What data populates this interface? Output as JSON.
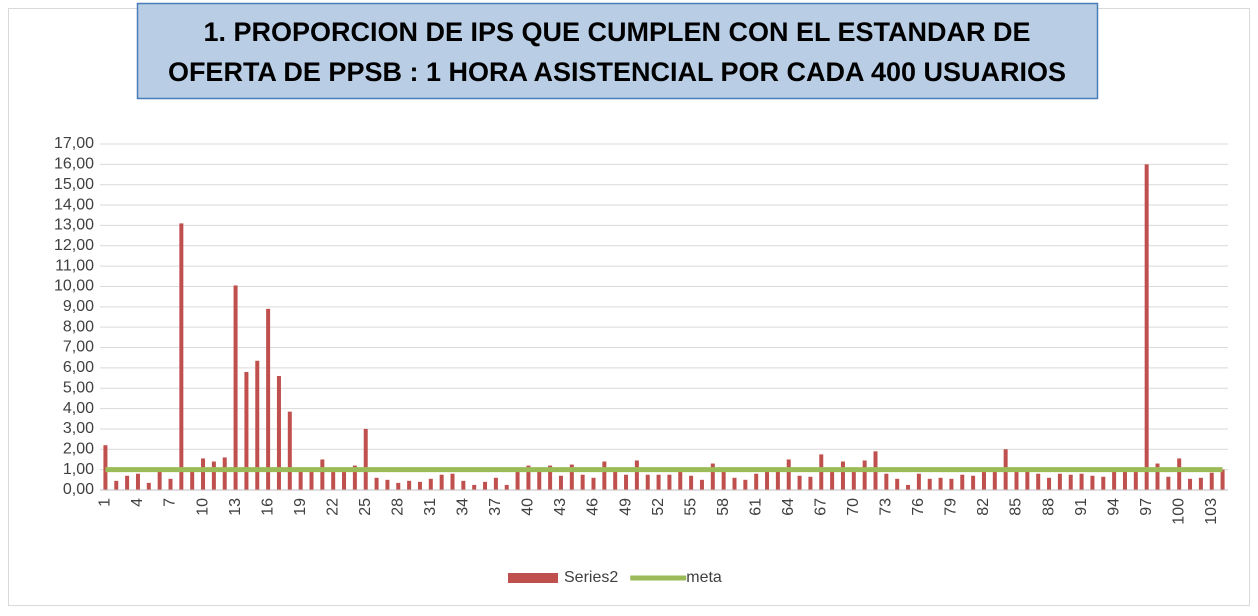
{
  "chart_data": {
    "type": "bar",
    "title": [
      "1. PROPORCION DE IPS QUE CUMPLEN CON EL ESTANDAR DE",
      "OFERTA DE PPSB : 1 HORA ASISTENCIAL POR CADA 400 USUARIOS"
    ],
    "categories": [
      1,
      null,
      null,
      4,
      null,
      null,
      7,
      null,
      null,
      10,
      null,
      null,
      13,
      null,
      null,
      16,
      null,
      null,
      19,
      null,
      null,
      22,
      null,
      null,
      25,
      null,
      null,
      28,
      null,
      null,
      31,
      null,
      null,
      34,
      null,
      null,
      37,
      null,
      null,
      40,
      null,
      null,
      43,
      null,
      null,
      46,
      null,
      null,
      49,
      null,
      null,
      52,
      null,
      null,
      55,
      null,
      null,
      58,
      null,
      null,
      61,
      null,
      null,
      64,
      null,
      null,
      67,
      null,
      null,
      70,
      null,
      null,
      73,
      null,
      null,
      76,
      null,
      null,
      79,
      null,
      null,
      82,
      null,
      null,
      85,
      null,
      null,
      88,
      null,
      null,
      91,
      null,
      null,
      94,
      null,
      null,
      97,
      null,
      null,
      100,
      null,
      null,
      103,
      null
    ],
    "series": [
      {
        "name": "Series2",
        "color": "#c0504d",
        "type": "bar",
        "values": [
          2.2,
          0.45,
          0.7,
          0.8,
          0.35,
          0.9,
          0.55,
          13.1,
          1.1,
          1.55,
          1.4,
          1.6,
          10.05,
          5.8,
          6.35,
          8.9,
          5.6,
          3.85,
          1.1,
          1.0,
          1.5,
          1.1,
          1.0,
          1.2,
          3.0,
          0.6,
          0.5,
          0.35,
          0.45,
          0.4,
          0.55,
          0.75,
          0.8,
          0.45,
          0.25,
          0.4,
          0.6,
          0.25,
          0.9,
          1.2,
          1.1,
          1.2,
          0.7,
          1.25,
          0.75,
          0.6,
          1.4,
          1.0,
          0.75,
          1.45,
          0.75,
          0.75,
          0.75,
          0.9,
          0.7,
          0.5,
          1.3,
          1.0,
          0.6,
          0.5,
          0.8,
          1.0,
          1.0,
          1.5,
          0.7,
          0.65,
          1.75,
          1.0,
          1.4,
          1.0,
          1.45,
          1.9,
          0.8,
          0.55,
          0.25,
          0.8,
          0.55,
          0.6,
          0.55,
          0.75,
          0.7,
          0.9,
          1.0,
          2.0,
          1.0,
          0.9,
          0.8,
          0.6,
          0.8,
          0.75,
          0.8,
          0.7,
          0.65,
          0.9,
          1.0,
          1.0,
          16.0,
          1.3,
          0.65,
          1.55,
          0.55,
          0.6,
          0.85,
          1.0
        ]
      },
      {
        "name": "meta",
        "color": "#9bbb59",
        "type": "line",
        "values": [
          1,
          1,
          1,
          1,
          1,
          1,
          1,
          1,
          1,
          1,
          1,
          1,
          1,
          1,
          1,
          1,
          1,
          1,
          1,
          1,
          1,
          1,
          1,
          1,
          1,
          1,
          1,
          1,
          1,
          1,
          1,
          1,
          1,
          1,
          1,
          1,
          1,
          1,
          1,
          1,
          1,
          1,
          1,
          1,
          1,
          1,
          1,
          1,
          1,
          1,
          1,
          1,
          1,
          1,
          1,
          1,
          1,
          1,
          1,
          1,
          1,
          1,
          1,
          1,
          1,
          1,
          1,
          1,
          1,
          1,
          1,
          1,
          1,
          1,
          1,
          1,
          1,
          1,
          1,
          1,
          1,
          1,
          1,
          1,
          1,
          1,
          1,
          1,
          1,
          1,
          1,
          1,
          1,
          1,
          1,
          1,
          1,
          1,
          1,
          1,
          1,
          1,
          1,
          1
        ]
      }
    ],
    "ylim": [
      0,
      17
    ],
    "yticks": [
      {
        "value": 0,
        "label": "0,00"
      },
      {
        "value": 1,
        "label": "1,00"
      },
      {
        "value": 2,
        "label": "2,00"
      },
      {
        "value": 3,
        "label": "3,00"
      },
      {
        "value": 4,
        "label": "4,00"
      },
      {
        "value": 5,
        "label": "5,00"
      },
      {
        "value": 6,
        "label": "6,00"
      },
      {
        "value": 7,
        "label": "7,00"
      },
      {
        "value": 8,
        "label": "8,00"
      },
      {
        "value": 9,
        "label": "9,00"
      },
      {
        "value": 10,
        "label": "10,00"
      },
      {
        "value": 11,
        "label": "11,00"
      },
      {
        "value": 12,
        "label": "12,00"
      },
      {
        "value": 13,
        "label": "13,00"
      },
      {
        "value": 14,
        "label": "14,00"
      },
      {
        "value": 15,
        "label": "15,00"
      },
      {
        "value": 16,
        "label": "16,00"
      },
      {
        "value": 17,
        "label": "17,00"
      }
    ],
    "grid": true,
    "legend": "bottom"
  }
}
